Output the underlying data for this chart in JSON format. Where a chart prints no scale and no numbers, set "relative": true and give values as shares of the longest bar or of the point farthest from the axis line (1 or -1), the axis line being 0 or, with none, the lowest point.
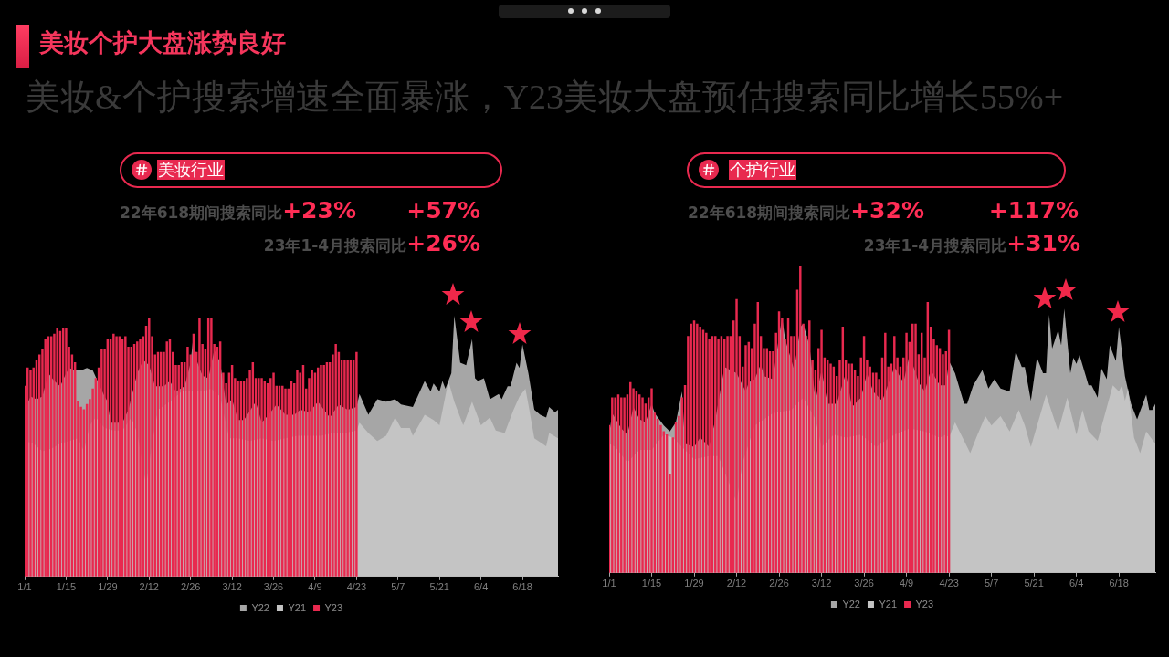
{
  "chart_data": [
    {
      "type": "other",
      "title": "美妆个护大盘涨势良好",
      "subtitle": "美妆&个护搜索增速全面暴涨，Y23美妆大盘预估搜索同比增长55%+"
    },
    {
      "type": "area",
      "title": "美妆行业",
      "annotations": [
        "22年618期间搜索同比+23%",
        "+57%",
        "23年1-4月搜索同比+26%"
      ],
      "relative": true,
      "legend": "bottom",
      "xlim": [
        "--01-01",
        "--06-30"
      ],
      "xticks": [
        {
          "value": "--01-01",
          "label": "1/1"
        },
        {
          "value": "--01-15",
          "label": "1/15"
        },
        {
          "value": "--01-29",
          "label": "1/29"
        },
        {
          "value": "--02-12",
          "label": "2/12"
        },
        {
          "value": "--02-26",
          "label": "2/26"
        },
        {
          "value": "--03-12",
          "label": "3/12"
        },
        {
          "value": "--03-26",
          "label": "3/26"
        },
        {
          "value": "--04-09",
          "label": "4/9"
        },
        {
          "value": "--04-23",
          "label": "4/23"
        },
        {
          "value": "--05-07",
          "label": "5/7"
        },
        {
          "value": "--05-21",
          "label": "5/21"
        },
        {
          "value": "--06-04",
          "label": "6/4"
        },
        {
          "value": "--06-18",
          "label": "6/18"
        }
      ],
      "series": [
        {
          "name": "Y22",
          "color": "#a6a6a6",
          "x": [
            "--01-01",
            "--01-03",
            "--01-05",
            "--01-07",
            "--01-09",
            "--01-11",
            "--01-13",
            "--01-15",
            "--01-16",
            "--01-18",
            "--01-20",
            "--01-22",
            "--01-24",
            "--01-26",
            "--01-28",
            "--01-29",
            "--01-30",
            "--02-03",
            "--02-05",
            "--02-08",
            "--02-10",
            "--02-12",
            "--02-14",
            "--02-17",
            "--02-19",
            "--02-21",
            "--02-24",
            "--02-26",
            "--02-27",
            "--02-28",
            "--03-02",
            "--03-04",
            "--03-06",
            "--03-08",
            "--03-10",
            "--03-12",
            "--03-14",
            "--03-16",
            "--03-20",
            "--03-22",
            "--03-25",
            "--03-27",
            "--03-30",
            "--04-02",
            "--04-04",
            "--04-07",
            "--04-10",
            "--04-12",
            "--04-14",
            "--04-17",
            "--04-20",
            "--04-23",
            "--04-24",
            "--04-27",
            "--04-30",
            "--05-03",
            "--05-06",
            "--05-08",
            "--05-12",
            "--05-16",
            "--05-18",
            "--05-19",
            "--05-21",
            "--05-22",
            "--05-23",
            "--05-25",
            "--05-26",
            "--05-28",
            "--05-30",
            "--06-01",
            "--06-02",
            "--06-03",
            "--06-05",
            "--06-07",
            "--06-10",
            "--06-11",
            "--06-13",
            "--06-14",
            "--06-16",
            "--06-17",
            "--06-18",
            "--06-20",
            "--06-22",
            "--06-24",
            "--06-26",
            "--06-27",
            "--06-29",
            "--06-30"
          ],
          "values": [
            0.64,
            0.69,
            0.68,
            0.69,
            0.78,
            0.75,
            0.73,
            0.78,
            0.8,
            0.79,
            0.79,
            0.8,
            0.79,
            0.74,
            0.69,
            0.67,
            0.59,
            0.59,
            0.64,
            0.78,
            0.83,
            0.81,
            0.73,
            0.73,
            0.75,
            0.71,
            0.73,
            0.82,
            0.93,
            0.83,
            0.77,
            0.76,
            0.87,
            0.82,
            0.66,
            0.68,
            0.6,
            0.6,
            0.67,
            0.59,
            0.63,
            0.66,
            0.62,
            0.62,
            0.64,
            0.63,
            0.67,
            0.64,
            0.61,
            0.66,
            0.64,
            0.65,
            0.7,
            0.62,
            0.68,
            0.67,
            0.68,
            0.66,
            0.65,
            0.75,
            0.71,
            0.74,
            0.71,
            0.75,
            0.72,
            0.78,
            1.0,
            0.82,
            0.81,
            0.91,
            0.76,
            0.75,
            0.76,
            0.68,
            0.7,
            0.68,
            0.73,
            0.73,
            0.82,
            0.8,
            0.89,
            0.78,
            0.64,
            0.62,
            0.61,
            0.65,
            0.63,
            0.64
          ]
        },
        {
          "name": "Y21",
          "color": "#c4c4c4",
          "x": [
            "--01-01",
            "--01-04",
            "--01-07",
            "--01-10",
            "--01-13",
            "--01-16",
            "--01-19",
            "--01-21",
            "--01-23",
            "--01-25",
            "--01-28",
            "--01-31",
            "--02-03",
            "--02-06",
            "--02-08",
            "--02-11",
            "--02-13",
            "--02-15",
            "--02-19",
            "--02-23",
            "--02-27",
            "--03-02",
            "--03-05",
            "--03-08",
            "--03-11",
            "--03-14",
            "--03-18",
            "--03-22",
            "--03-26",
            "--03-30",
            "--04-03",
            "--04-07",
            "--04-11",
            "--04-15",
            "--04-19",
            "--04-23",
            "--04-24",
            "--04-27",
            "--04-30",
            "--05-03",
            "--05-06",
            "--05-08",
            "--05-11",
            "--05-12",
            "--05-16",
            "--05-19",
            "--05-21",
            "--05-24",
            "--05-26",
            "--05-29",
            "--06-01",
            "--06-04",
            "--06-07",
            "--06-09",
            "--06-12",
            "--06-15",
            "--06-17",
            "--06-19",
            "--06-20",
            "--06-22",
            "--06-26",
            "--06-27",
            "--06-30"
          ],
          "values": [
            0.52,
            0.51,
            0.48,
            0.49,
            0.51,
            0.52,
            0.53,
            0.48,
            0.58,
            0.61,
            0.57,
            0.56,
            0.56,
            0.61,
            0.55,
            0.35,
            0.51,
            0.64,
            0.67,
            0.71,
            0.71,
            0.71,
            0.72,
            0.69,
            0.53,
            0.53,
            0.52,
            0.53,
            0.52,
            0.53,
            0.54,
            0.54,
            0.54,
            0.55,
            0.55,
            0.56,
            0.59,
            0.55,
            0.52,
            0.54,
            0.61,
            0.57,
            0.57,
            0.54,
            0.62,
            0.6,
            0.58,
            0.75,
            0.67,
            0.58,
            0.67,
            0.58,
            0.61,
            0.56,
            0.55,
            0.64,
            0.69,
            0.72,
            0.66,
            0.53,
            0.5,
            0.55,
            0.53
          ]
        },
        {
          "name": "Y23",
          "type": "bar",
          "color": "#e8294f",
          "x": [
            "--01-01",
            "--01-02",
            "--01-03",
            "--01-04",
            "--01-05",
            "--01-06",
            "--01-07",
            "--01-08",
            "--01-09",
            "--01-10",
            "--01-11",
            "--01-12",
            "--01-13",
            "--01-14",
            "--01-15",
            "--01-16",
            "--01-17",
            "--01-18",
            "--01-19",
            "--01-20",
            "--01-21",
            "--01-22",
            "--01-23",
            "--01-24",
            "--01-25",
            "--01-26",
            "--01-27",
            "--01-28",
            "--01-29",
            "--01-30",
            "--01-31",
            "--02-01",
            "--02-02",
            "--02-03",
            "--02-04",
            "--02-05",
            "--02-06",
            "--02-07",
            "--02-08",
            "--02-09",
            "--02-10",
            "--02-11",
            "--02-12",
            "--02-13",
            "--02-14",
            "--02-15",
            "--02-16",
            "--02-17",
            "--02-18",
            "--02-19",
            "--02-20",
            "--02-21",
            "--02-22",
            "--02-23",
            "--02-24",
            "--02-25",
            "--02-26",
            "--02-27",
            "--02-28",
            "--03-01",
            "--03-02",
            "--03-03",
            "--03-04",
            "--03-05",
            "--03-06",
            "--03-07",
            "--03-08",
            "--03-09",
            "--03-10",
            "--03-11",
            "--03-12",
            "--03-13",
            "--03-14",
            "--03-15",
            "--03-16",
            "--03-17",
            "--03-18",
            "--03-19",
            "--03-20",
            "--03-21",
            "--03-22",
            "--03-23",
            "--03-24",
            "--03-25",
            "--03-26",
            "--03-27",
            "--03-28",
            "--03-29",
            "--03-30",
            "--03-31",
            "--04-01",
            "--04-02",
            "--04-03",
            "--04-04",
            "--04-05",
            "--04-06",
            "--04-07",
            "--04-08",
            "--04-09",
            "--04-10",
            "--04-11",
            "--04-12",
            "--04-13",
            "--04-14",
            "--04-15",
            "--04-16",
            "--04-17",
            "--04-18",
            "--04-19",
            "--04-20",
            "--04-21",
            "--04-22",
            "--04-23"
          ],
          "values": [
            0.73,
            0.8,
            0.79,
            0.8,
            0.83,
            0.85,
            0.87,
            0.91,
            0.92,
            0.92,
            0.93,
            0.95,
            0.94,
            0.95,
            0.95,
            0.88,
            0.85,
            0.82,
            0.67,
            0.65,
            0.64,
            0.66,
            0.68,
            0.72,
            0.76,
            0.8,
            0.87,
            0.87,
            0.91,
            0.91,
            0.93,
            0.92,
            0.92,
            0.91,
            0.92,
            0.88,
            0.88,
            0.89,
            0.9,
            0.91,
            0.92,
            0.96,
            0.99,
            0.92,
            0.85,
            0.86,
            0.86,
            0.86,
            0.9,
            0.91,
            0.86,
            0.81,
            0.81,
            0.82,
            0.82,
            0.88,
            0.85,
            0.93,
            0.86,
            0.99,
            0.89,
            0.87,
            0.99,
            0.99,
            0.89,
            0.88,
            0.9,
            0.78,
            0.74,
            0.78,
            0.81,
            0.76,
            0.75,
            0.75,
            0.75,
            0.76,
            0.79,
            0.82,
            0.76,
            0.76,
            0.76,
            0.75,
            0.74,
            0.76,
            0.78,
            0.73,
            0.73,
            0.73,
            0.72,
            0.72,
            0.75,
            0.74,
            0.79,
            0.78,
            0.81,
            0.72,
            0.76,
            0.79,
            0.78,
            0.8,
            0.81,
            0.81,
            0.82,
            0.82,
            0.85,
            0.89,
            0.86,
            0.83,
            0.83,
            0.83,
            0.83,
            0.83,
            0.86
          ]
        }
      ]
    },
    {
      "type": "area",
      "title": "个护行业",
      "annotations": [
        "22年618期间搜索同比+32%",
        "+117%",
        "23年1-4月搜索同比+31%"
      ],
      "relative": true,
      "legend": "bottom",
      "xlim": [
        "--01-01",
        "--06-30"
      ],
      "xticks": [
        {
          "value": "--01-01",
          "label": "1/1"
        },
        {
          "value": "--01-15",
          "label": "1/15"
        },
        {
          "value": "--01-29",
          "label": "1/29"
        },
        {
          "value": "--02-12",
          "label": "2/12"
        },
        {
          "value": "--02-26",
          "label": "2/26"
        },
        {
          "value": "--03-12",
          "label": "3/12"
        },
        {
          "value": "--03-26",
          "label": "3/26"
        },
        {
          "value": "--04-09",
          "label": "4/9"
        },
        {
          "value": "--04-23",
          "label": "4/23"
        },
        {
          "value": "--05-07",
          "label": "5/7"
        },
        {
          "value": "--05-21",
          "label": "5/21"
        },
        {
          "value": "--06-04",
          "label": "6/4"
        },
        {
          "value": "--06-18",
          "label": "6/18"
        }
      ],
      "series": [
        {
          "name": "Y22",
          "color": "#a6a6a6",
          "x": [
            "--01-01",
            "--01-02",
            "--01-05",
            "--01-07",
            "--01-09",
            "--01-11",
            "--01-13",
            "--01-15",
            "--01-16",
            "--01-19",
            "--01-21",
            "--01-23",
            "--01-25",
            "--01-26",
            "--01-29",
            "--01-31",
            "--02-03",
            "--02-05",
            "--02-08",
            "--02-10",
            "--02-12",
            "--02-15",
            "--02-16",
            "--02-18",
            "--02-20",
            "--02-21",
            "--02-24",
            "--02-26",
            "--02-27",
            "--02-28",
            "--03-03",
            "--03-05",
            "--03-06",
            "--03-08",
            "--03-10",
            "--03-12",
            "--03-14",
            "--03-17",
            "--03-20",
            "--03-22",
            "--03-25",
            "--03-27",
            "--03-29",
            "--04-01",
            "--04-05",
            "--04-08",
            "--04-10",
            "--04-13",
            "--04-15",
            "--04-17",
            "--04-20",
            "--04-22",
            "--04-23",
            "--04-25",
            "--04-28",
            "--04-29",
            "--05-01",
            "--05-04",
            "--05-06",
            "--05-08",
            "--05-10",
            "--05-13",
            "--05-15",
            "--05-17",
            "--05-18",
            "--05-20",
            "--05-22",
            "--05-24",
            "--05-25",
            "--05-26",
            "--05-27",
            "--05-29",
            "--05-30",
            "--05-31",
            "--06-02",
            "--06-03",
            "--06-04",
            "--06-05",
            "--06-08",
            "--06-09",
            "--06-11",
            "--06-12",
            "--06-14",
            "--06-15",
            "--06-17",
            "--06-18",
            "--06-20",
            "--06-22",
            "--06-24",
            "--06-27",
            "--06-28",
            "--06-29",
            "--06-30"
          ],
          "values": [
            0.45,
            0.52,
            0.47,
            0.45,
            0.54,
            0.5,
            0.49,
            0.55,
            0.52,
            0.48,
            0.46,
            0.49,
            0.59,
            0.42,
            0.41,
            0.44,
            0.41,
            0.5,
            0.67,
            0.66,
            0.65,
            0.59,
            0.62,
            0.63,
            0.68,
            0.64,
            0.63,
            0.77,
            0.83,
            0.76,
            0.66,
            0.8,
            0.81,
            0.74,
            0.56,
            0.66,
            0.55,
            0.55,
            0.65,
            0.54,
            0.57,
            0.65,
            0.59,
            0.56,
            0.67,
            0.62,
            0.71,
            0.62,
            0.59,
            0.66,
            0.61,
            0.61,
            0.69,
            0.65,
            0.55,
            0.55,
            0.61,
            0.66,
            0.6,
            0.63,
            0.6,
            0.59,
            0.72,
            0.67,
            0.67,
            0.56,
            0.7,
            0.65,
            0.65,
            0.84,
            0.73,
            0.79,
            0.74,
            0.86,
            0.65,
            0.7,
            0.68,
            0.71,
            0.61,
            0.61,
            0.57,
            0.67,
            0.63,
            0.74,
            0.69,
            0.8,
            0.64,
            0.55,
            0.5,
            0.58,
            0.53,
            0.53,
            0.55
          ]
        },
        {
          "name": "Y21",
          "color": "#c4c4c4",
          "x": [
            "--01-01",
            "--01-03",
            "--01-07",
            "--01-11",
            "--01-15",
            "--01-19",
            "--01-22",
            "--01-25",
            "--01-29",
            "--02-03",
            "--02-06",
            "--02-10",
            "--02-12",
            "--02-14",
            "--02-18",
            "--02-24",
            "--03-02",
            "--03-06",
            "--03-10",
            "--03-12",
            "--03-16",
            "--03-20",
            "--03-25",
            "--03-30",
            "--04-05",
            "--04-10",
            "--04-15",
            "--04-20",
            "--04-22",
            "--04-23",
            "--04-25",
            "--04-27",
            "--04-30",
            "--05-02",
            "--05-05",
            "--05-07",
            "--05-10",
            "--05-13",
            "--05-16",
            "--05-18",
            "--05-20",
            "--05-25",
            "--05-29",
            "--06-01",
            "--06-04",
            "--06-06",
            "--06-08",
            "--06-11",
            "--06-16",
            "--06-18",
            "--06-19",
            "--06-20",
            "--06-21",
            "--06-23",
            "--06-25",
            "--06-27",
            "--06-30"
          ],
          "values": [
            0.42,
            0.41,
            0.36,
            0.4,
            0.4,
            0.45,
            0.44,
            0.41,
            0.37,
            0.38,
            0.38,
            0.28,
            0.23,
            0.36,
            0.48,
            0.52,
            0.53,
            0.57,
            0.5,
            0.41,
            0.45,
            0.44,
            0.45,
            0.41,
            0.45,
            0.47,
            0.46,
            0.44,
            0.45,
            0.44,
            0.49,
            0.45,
            0.39,
            0.44,
            0.51,
            0.48,
            0.51,
            0.46,
            0.53,
            0.48,
            0.41,
            0.58,
            0.46,
            0.57,
            0.45,
            0.53,
            0.46,
            0.43,
            0.61,
            0.59,
            0.61,
            0.56,
            0.6,
            0.44,
            0.39,
            0.46,
            0.42
          ]
        },
        {
          "name": "Y23",
          "type": "bar",
          "color": "#e8294f",
          "x": [
            "--01-01",
            "--01-02",
            "--01-03",
            "--01-04",
            "--01-05",
            "--01-06",
            "--01-07",
            "--01-08",
            "--01-09",
            "--01-10",
            "--01-11",
            "--01-12",
            "--01-13",
            "--01-14",
            "--01-15",
            "--01-16",
            "--01-17",
            "--01-18",
            "--01-19",
            "--01-20",
            "--01-21",
            "--01-22",
            "--01-23",
            "--01-24",
            "--01-25",
            "--01-26",
            "--01-27",
            "--01-28",
            "--01-29",
            "--01-30",
            "--01-31",
            "--02-01",
            "--02-02",
            "--02-03",
            "--02-04",
            "--02-05",
            "--02-06",
            "--02-07",
            "--02-08",
            "--02-09",
            "--02-10",
            "--02-11",
            "--02-12",
            "--02-13",
            "--02-14",
            "--02-15",
            "--02-16",
            "--02-17",
            "--02-18",
            "--02-19",
            "--02-20",
            "--02-21",
            "--02-22",
            "--02-23",
            "--02-24",
            "--02-25",
            "--02-26",
            "--02-27",
            "--02-28",
            "--03-01",
            "--03-02",
            "--03-03",
            "--03-04",
            "--03-05",
            "--03-06",
            "--03-07",
            "--03-08",
            "--03-09",
            "--03-10",
            "--03-11",
            "--03-12",
            "--03-13",
            "--03-14",
            "--03-15",
            "--03-16",
            "--03-17",
            "--03-18",
            "--03-19",
            "--03-20",
            "--03-21",
            "--03-22",
            "--03-23",
            "--03-24",
            "--03-25",
            "--03-26",
            "--03-27",
            "--03-28",
            "--03-29",
            "--03-30",
            "--03-31",
            "--04-01",
            "--04-02",
            "--04-03",
            "--04-04",
            "--04-05",
            "--04-06",
            "--04-07",
            "--04-08",
            "--04-09",
            "--04-10",
            "--04-11",
            "--04-12",
            "--04-13",
            "--04-14",
            "--04-15",
            "--04-16",
            "--04-17",
            "--04-18",
            "--04-19",
            "--04-20",
            "--04-21",
            "--04-22",
            "--04-23"
          ],
          "values": [
            0.48,
            0.57,
            0.57,
            0.58,
            0.57,
            0.57,
            0.58,
            0.62,
            0.6,
            0.59,
            0.58,
            0.57,
            0.55,
            0.57,
            0.6,
            0.52,
            0.5,
            0.48,
            0.46,
            0.45,
            0.32,
            0.44,
            0.49,
            0.51,
            0.57,
            0.61,
            0.77,
            0.81,
            0.82,
            0.81,
            0.8,
            0.79,
            0.78,
            0.76,
            0.77,
            0.77,
            0.76,
            0.77,
            0.76,
            0.77,
            0.77,
            0.82,
            0.89,
            0.77,
            0.67,
            0.74,
            0.75,
            0.73,
            0.81,
            0.88,
            0.77,
            0.73,
            0.73,
            0.72,
            0.72,
            0.78,
            0.85,
            0.83,
            0.76,
            0.83,
            0.77,
            0.77,
            0.92,
            1.0,
            0.81,
            0.77,
            0.82,
            0.69,
            0.66,
            0.73,
            0.79,
            0.7,
            0.69,
            0.68,
            0.67,
            0.64,
            0.69,
            0.8,
            0.69,
            0.68,
            0.68,
            0.66,
            0.64,
            0.7,
            0.77,
            0.69,
            0.67,
            0.65,
            0.65,
            0.63,
            0.7,
            0.78,
            0.67,
            0.68,
            0.77,
            0.7,
            0.67,
            0.7,
            0.78,
            0.75,
            0.81,
            0.81,
            0.71,
            0.78,
            0.7,
            0.88,
            0.8,
            0.76,
            0.74,
            0.73,
            0.71,
            0.72,
            0.79
          ]
        }
      ]
    }
  ]
}
